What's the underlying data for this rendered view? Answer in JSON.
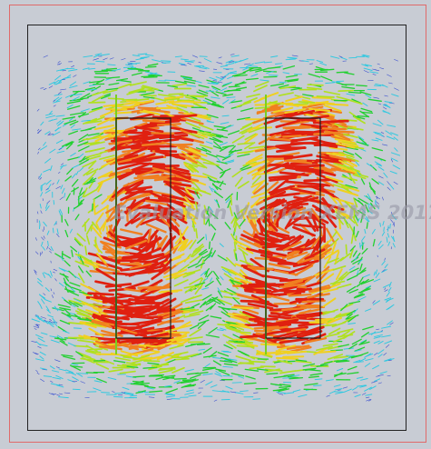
{
  "viewer": {
    "watermark_text": "Evaluation Version XEMS 2017"
  },
  "colors": {
    "background": "#c8ccd4",
    "outer_frame": "#e06a6a",
    "inner_frame": "#222222",
    "conductor_outline": "#1a1a1a",
    "vector_scale": [
      "#3a4fd0",
      "#2fc8e0",
      "#22d030",
      "#b0e020",
      "#f0d020",
      "#f08020",
      "#e02010"
    ]
  },
  "scene": {
    "conductors": [
      {
        "name": "left-coil"
      },
      {
        "name": "right-coil"
      }
    ],
    "vector_field": "magnetic-field-arrows"
  }
}
